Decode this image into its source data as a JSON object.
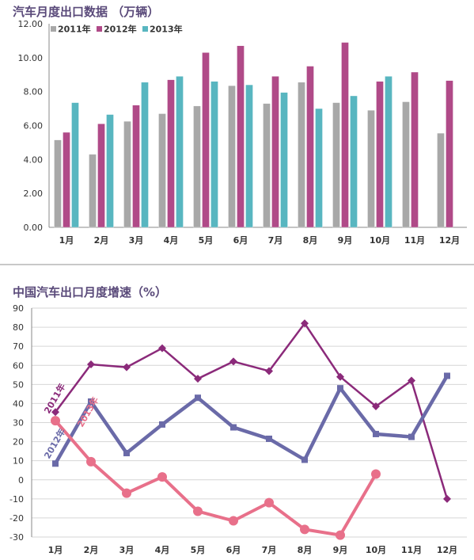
{
  "chart_data": [
    {
      "type": "bar",
      "title": "汽车月度出口数据 （万辆）",
      "categories": [
        "1月",
        "2月",
        "3月",
        "4月",
        "5月",
        "6月",
        "7月",
        "8月",
        "9月",
        "10月",
        "11月",
        "12月"
      ],
      "ylim": [
        0,
        12
      ],
      "yticks": [
        "0.00",
        "2.00",
        "4.00",
        "6.00",
        "8.00",
        "10.00",
        "12.00"
      ],
      "legend_position": "top-left",
      "series": [
        {
          "name": "2011年",
          "color": "#a8a8a8",
          "values": [
            5.15,
            4.3,
            6.25,
            6.7,
            7.15,
            8.35,
            7.3,
            8.55,
            7.35,
            6.9,
            7.4,
            5.55
          ]
        },
        {
          "name": "2012年",
          "color": "#b04a88",
          "values": [
            5.6,
            6.1,
            7.2,
            8.7,
            10.3,
            10.7,
            8.9,
            9.5,
            10.9,
            8.6,
            9.15,
            8.65
          ]
        },
        {
          "name": "2013年",
          "color": "#58b6c0",
          "values": [
            7.35,
            6.65,
            8.55,
            8.9,
            8.6,
            8.4,
            7.95,
            7.0,
            7.75,
            8.9,
            null,
            null
          ]
        }
      ]
    },
    {
      "type": "line",
      "title": "中国汽车出口月度增速（%）",
      "categories": [
        "1月",
        "2月",
        "3月",
        "4月",
        "5月",
        "6月",
        "7月",
        "8月",
        "9月",
        "10月",
        "11月",
        "12月"
      ],
      "ylim": [
        -30,
        90
      ],
      "yticks": [
        "-30",
        "-20",
        "-10",
        "0",
        "10",
        "20",
        "30",
        "40",
        "50",
        "60",
        "70",
        "80",
        "90"
      ],
      "series": [
        {
          "name": "2011年",
          "color": "#8b2a7a",
          "marker": "diamond",
          "values": [
            35.5,
            60.5,
            59,
            69,
            53,
            62,
            57,
            82,
            54,
            38.5,
            52,
            -10
          ]
        },
        {
          "name": "2012年",
          "color": "#6a6aa8",
          "marker": "square",
          "values": [
            8.5,
            41,
            14,
            29,
            43,
            27.5,
            21.5,
            10.5,
            48,
            24,
            22.5,
            54.5
          ]
        },
        {
          "name": "2013年",
          "color": "#e8708a",
          "marker": "circle",
          "values": [
            31,
            9.5,
            -7,
            1.5,
            -16.5,
            -21.5,
            -12,
            -26,
            -29,
            3,
            null,
            null
          ]
        }
      ]
    }
  ]
}
